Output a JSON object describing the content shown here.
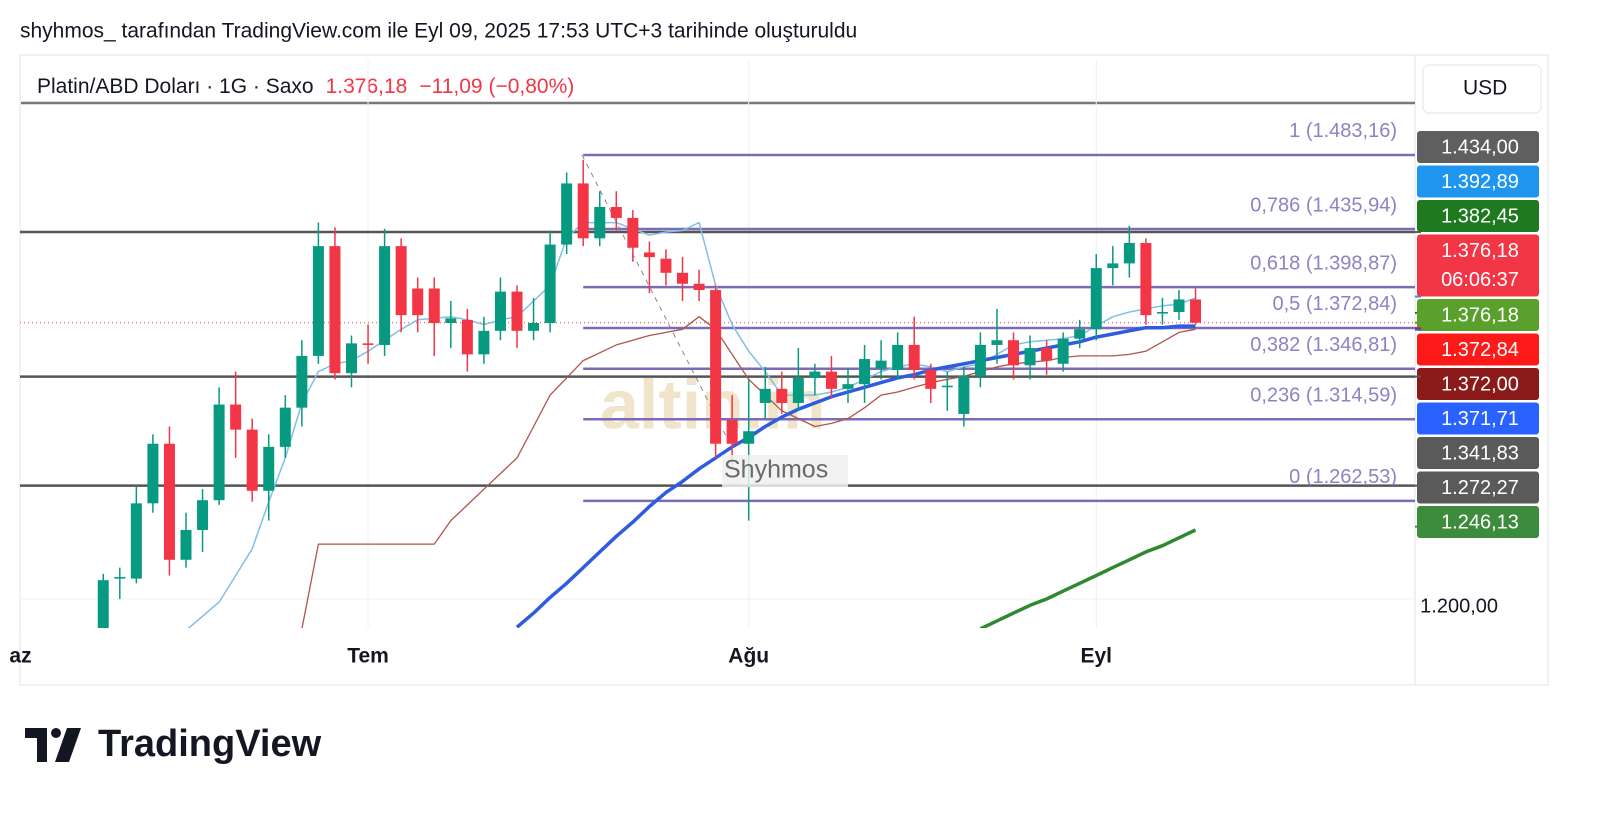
{
  "header": {
    "credit": "shyhmos_ tarafından TradingView.com ile Eyl 09, 2025 17:53 UTC+3 tarihinde oluşturuldu",
    "symbol": "Platin/ABD Doları · 1G · Saxo",
    "last": "1.376,18",
    "change": "−11,09 (−0,80%)",
    "currency": "USD"
  },
  "watermarks": {
    "logo": "altin.in",
    "author": "Shyhmos"
  },
  "footer": {
    "brand": "TradingView"
  },
  "chart_data": {
    "type": "candlestick",
    "categories": [
      "az",
      null,
      null,
      null,
      null,
      null,
      null,
      null,
      null,
      null,
      null,
      null,
      null,
      null,
      null,
      null,
      null,
      null,
      null,
      null,
      null,
      "Tem",
      null,
      null,
      null,
      null,
      null,
      null,
      null,
      null,
      null,
      null,
      null,
      null,
      null,
      null,
      null,
      null,
      null,
      null,
      null,
      null,
      null,
      null,
      "Ağu",
      null,
      null,
      null,
      null,
      null,
      null,
      null,
      null,
      null,
      null,
      null,
      null,
      null,
      null,
      null,
      null,
      null,
      null,
      null,
      null,
      "Eyl",
      null,
      null,
      null,
      null,
      null,
      null
    ],
    "candles": {
      "up_color": "#089981",
      "down_color": "#f23645",
      "open": [
        null,
        null,
        null,
        null,
        null,
        1180,
        1213,
        1213,
        1261,
        1299,
        1225,
        1244,
        1263,
        1324,
        1308,
        1269,
        1297,
        1322,
        1355,
        1425,
        1344,
        1363,
        1362,
        1425,
        1398,
        1398,
        1376,
        1378,
        1356,
        1371,
        1396,
        1371,
        1376,
        1426,
        1465,
        1430,
        1450,
        1443,
        1421,
        1417,
        1408,
        1401,
        1397,
        1314,
        1299,
        1325,
        1334,
        1325,
        1341,
        1345,
        1334,
        1337,
        1347,
        1346,
        1362,
        1346,
        1335,
        1318,
        1342,
        1362,
        1365,
        1349,
        1360,
        1350,
        1366,
        1372,
        1411,
        1414,
        1427,
        1382,
        1383,
        1391
      ],
      "high": [
        null,
        null,
        null,
        null,
        null,
        1216,
        1220,
        1272,
        1305,
        1310,
        1255,
        1270,
        1335,
        1345,
        1315,
        1305,
        1330,
        1365,
        1440,
        1437,
        1368,
        1375,
        1436,
        1430,
        1405,
        1405,
        1390,
        1385,
        1380,
        1405,
        1400,
        1392,
        1435,
        1472,
        1480,
        1460,
        1460,
        1448,
        1428,
        1423,
        1418,
        1410,
        1400,
        1330,
        1340,
        1348,
        1345,
        1360,
        1350,
        1355,
        1347,
        1362,
        1365,
        1370,
        1380,
        1350,
        1345,
        1348,
        1370,
        1385,
        1370,
        1368,
        1365,
        1370,
        1378,
        1420,
        1425,
        1438,
        1430,
        1392,
        1397,
        1398
      ],
      "low": [
        null,
        null,
        null,
        null,
        null,
        1170,
        1200,
        1210,
        1255,
        1215,
        1220,
        1230,
        1260,
        1290,
        1262,
        1250,
        1290,
        1310,
        1350,
        1340,
        1335,
        1350,
        1355,
        1370,
        1370,
        1355,
        1360,
        1345,
        1350,
        1365,
        1360,
        1365,
        1370,
        1420,
        1425,
        1425,
        1435,
        1415,
        1395,
        1400,
        1390,
        1390,
        1290,
        1285,
        1250,
        1315,
        1318,
        1320,
        1330,
        1328,
        1325,
        1325,
        1340,
        1340,
        1340,
        1325,
        1320,
        1310,
        1335,
        1350,
        1340,
        1340,
        1343,
        1345,
        1360,
        1365,
        1400,
        1405,
        1375,
        1375,
        1378,
        1375
      ],
      "close": [
        null,
        null,
        null,
        null,
        null,
        1212,
        1214,
        1261,
        1299,
        1225,
        1244,
        1263,
        1324,
        1308,
        1269,
        1297,
        1322,
        1355,
        1425,
        1344,
        1363,
        1362,
        1425,
        1381,
        1381,
        1376,
        1379,
        1356,
        1371,
        1396,
        1371,
        1376,
        1426,
        1465,
        1430,
        1450,
        1443,
        1424,
        1418,
        1408,
        1401,
        1397,
        1299,
        1299,
        1307,
        1334,
        1325,
        1341,
        1345,
        1334,
        1337,
        1353,
        1352,
        1362,
        1346,
        1334,
        1336,
        1342,
        1362,
        1365,
        1349,
        1360,
        1352,
        1366,
        1372,
        1411,
        1414,
        1427,
        1381,
        1383,
        1391,
        1376.18
      ]
    },
    "series": [
      {
        "color": "#7fbfe8",
        "width": 1.5,
        "values": [
          null,
          null,
          null,
          null,
          null,
          null,
          null,
          null,
          null,
          null,
          1180,
          1189,
          1198,
          1215,
          1232,
          1262,
          1290,
          1325,
          1345,
          1350,
          1352,
          1358,
          1365,
          1372,
          1378,
          1379,
          1380,
          1378,
          1375,
          1378,
          1380,
          1390,
          1400,
          1430,
          1440,
          1440,
          1440,
          1436,
          1432,
          1434,
          1435,
          1440,
          1400,
          1375,
          1358,
          1345,
          1330,
          1330,
          1330,
          1332,
          1335,
          1340,
          1345,
          1348,
          1350,
          1348,
          1345,
          1348,
          1350,
          1356,
          1362,
          1364,
          1365,
          1366,
          1368,
          1374,
          1380,
          1383,
          1385,
          1387,
          1388,
          1392
        ]
      },
      {
        "color": "#b0554a",
        "width": 1.3,
        "values": [
          null,
          null,
          null,
          null,
          null,
          null,
          null,
          null,
          null,
          null,
          null,
          null,
          null,
          null,
          null,
          null,
          null,
          1181,
          1235,
          1235,
          1235,
          1235,
          1235,
          1235,
          1235,
          1235,
          1250,
          1260,
          1270,
          1280,
          1290,
          1310,
          1330,
          1341,
          1352,
          1357,
          1362,
          1365,
          1368,
          1370,
          1372,
          1380,
          1372,
          1356,
          1340,
          1330,
          1320,
          1315,
          1310,
          1312,
          1315,
          1322,
          1330,
          1332,
          1335,
          1338,
          1340,
          1342,
          1345,
          1348,
          1350,
          1351,
          1352,
          1354,
          1355,
          1355,
          1355,
          1356,
          1358,
          1364,
          1370,
          1372
        ]
      },
      {
        "color": "#2e5be0",
        "width": 3.5,
        "values": [
          null,
          null,
          null,
          null,
          null,
          null,
          null,
          null,
          null,
          null,
          null,
          null,
          null,
          null,
          null,
          null,
          null,
          null,
          null,
          null,
          null,
          null,
          null,
          null,
          null,
          null,
          null,
          null,
          null,
          null,
          1182,
          1191,
          1201,
          1210,
          1220,
          1230,
          1240,
          1249,
          1259,
          1268,
          1275,
          1283,
          1290,
          1297,
          1303,
          1310,
          1316,
          1321,
          1325,
          1329,
          1332,
          1335,
          1338,
          1341,
          1343,
          1346,
          1348,
          1350,
          1352,
          1354,
          1356,
          1358,
          1360,
          1362,
          1364,
          1367,
          1369,
          1371,
          1373,
          1373,
          1374,
          1374
        ]
      },
      {
        "color": "#2f8a2f",
        "width": 3.5,
        "values": [
          null,
          null,
          null,
          null,
          null,
          null,
          null,
          null,
          null,
          null,
          null,
          null,
          null,
          null,
          null,
          null,
          null,
          null,
          null,
          null,
          null,
          null,
          null,
          null,
          null,
          null,
          null,
          null,
          null,
          null,
          null,
          null,
          null,
          null,
          null,
          null,
          null,
          null,
          null,
          null,
          null,
          null,
          null,
          null,
          null,
          null,
          null,
          null,
          null,
          null,
          null,
          null,
          null,
          null,
          null,
          null,
          null,
          null,
          1181,
          1186,
          1191,
          1196,
          1200,
          1205,
          1210,
          1215,
          1220,
          1225,
          1230,
          1234,
          1239,
          1244
        ]
      }
    ],
    "fib_levels": [
      {
        "value": 1483.16,
        "label": "1 (1.483,16)"
      },
      {
        "value": 1435.94,
        "label": "0,786 (1.435,94)"
      },
      {
        "value": 1398.87,
        "label": "0,618 (1.398,87)"
      },
      {
        "value": 1372.84,
        "label": "0,5 (1.372,84)"
      },
      {
        "value": 1346.81,
        "label": "0,382 (1.346,81)"
      },
      {
        "value": 1314.59,
        "label": "0,236 (1.314,59)"
      },
      {
        "value": 1262.53,
        "label": "0 (1.262,53)"
      }
    ],
    "fib_color": "#7d6bb8",
    "horizontal_lines": [
      1434,
      1341.83,
      1272.27
    ],
    "last_price_line": 1376.18,
    "price_labels": [
      {
        "value": 1434.0,
        "label": "1.434,00",
        "color": "#5f5f5f"
      },
      {
        "value": 1392.89,
        "label": "1.392,89",
        "color": "#1e96f0"
      },
      {
        "value": 1382.45,
        "label": "1.382,45",
        "color": "#1f7a1f"
      },
      {
        "value": 1376.18,
        "label": "1.376,18",
        "color": "#f23645",
        "countdown": "06:06:37"
      },
      {
        "value": 1376.18,
        "label": "1.376,18",
        "color": "#5aa02c"
      },
      {
        "value": 1372.84,
        "label": "1.372,84",
        "color": "#ff1a1a"
      },
      {
        "value": 1372.0,
        "label": "1.372,00",
        "color": "#8b1a1a"
      },
      {
        "value": 1371.71,
        "label": "1.371,71",
        "color": "#2962ff"
      },
      {
        "value": 1341.83,
        "label": "1.341,83",
        "color": "#5a5a5a"
      },
      {
        "value": 1272.27,
        "label": "1.272,27",
        "color": "#5a5a5a"
      },
      {
        "value": 1246.13,
        "label": "1.246,13",
        "color": "#3d8c3d"
      }
    ],
    "ylim": [
      1181.5,
      1543.7
    ],
    "yticks": [
      {
        "value": 1200,
        "label": "1.200,00"
      }
    ],
    "grid": true
  }
}
